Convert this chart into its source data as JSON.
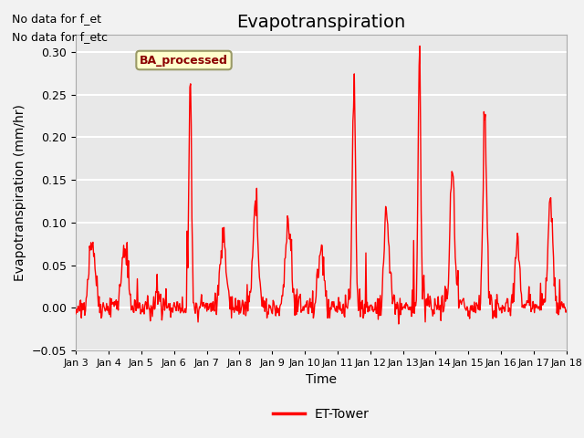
{
  "title": "Evapotranspiration",
  "ylabel": "Evapotranspiration (mm/hr)",
  "xlabel": "Time",
  "top_left_text_line1": "No data for f_et",
  "top_left_text_line2": "No data for f_etc",
  "legend_label": "ET-Tower",
  "legend_box_label": "BA_processed",
  "ylim": [
    -0.05,
    0.32
  ],
  "yticks": [
    -0.05,
    0.0,
    0.05,
    0.1,
    0.15,
    0.2,
    0.25,
    0.3
  ],
  "xtick_labels": [
    "Jan 3",
    "Jan 4",
    "Jan 5",
    "Jan 6",
    "Jan 7",
    "Jan 8",
    "Jan 9",
    "Jan 10",
    "Jan 11",
    "Jan 12",
    "Jan 13",
    "Jan 14",
    "Jan 15",
    "Jan 16",
    "Jan 17",
    "Jan 18"
  ],
  "line_color": "#ff0000",
  "line_width": 1.0,
  "bg_color": "#e8e8e8",
  "grid_color": "#ffffff",
  "box_facecolor": "#ffffcc",
  "box_edgecolor": "#999966",
  "title_fontsize": 14,
  "axis_label_fontsize": 10,
  "tick_fontsize": 9,
  "n_days": 15,
  "points_per_day": 48
}
